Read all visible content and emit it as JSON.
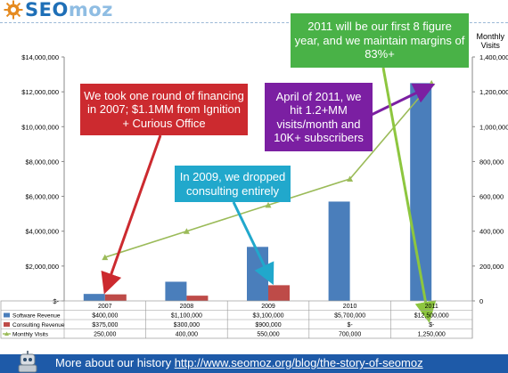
{
  "logo": {
    "part1": "SEO",
    "part2": "moz",
    "icon": "sun-gear-icon"
  },
  "right_axis_title_line1": "Monthly",
  "right_axis_title_line2": "Visits",
  "callouts": {
    "red": "We took one round of financing in 2007; $1.1MM from Ignition + Curious Office",
    "purple": "April of 2011, we hit 1.2+MM visits/month and 10K+ subscribers",
    "teal": "In 2009, we dropped consulting entirely",
    "green": "2011 will be our first 8 figure year, and we maintain margins of 83%+"
  },
  "footer": {
    "text": "More about our history",
    "link": "http://www.seomoz.org/blog/the-story-of-seomoz",
    "icon": "robot-icon"
  },
  "chart_data": {
    "type": "bar",
    "categories": [
      "2007",
      "2008",
      "2009",
      "2010",
      "2011"
    ],
    "series": [
      {
        "name": "Software Revenue",
        "kind": "bar",
        "color": "#4a7ebb",
        "values": [
          400000,
          1100000,
          3100000,
          5700000,
          12500000
        ],
        "labels": [
          "$400,000",
          "$1,100,000",
          "$3,100,000",
          "$5,700,000",
          "$12,500,000"
        ]
      },
      {
        "name": "Consulting Revenue",
        "kind": "bar",
        "color": "#be4b48",
        "values": [
          375000,
          300000,
          900000,
          0,
          0
        ],
        "labels": [
          "$375,000",
          "$300,000",
          "$900,000",
          "$-",
          "$-"
        ]
      },
      {
        "name": "Monthly Visits",
        "kind": "line",
        "axis": "right",
        "color": "#9bbb59",
        "values": [
          250000,
          400000,
          550000,
          700000,
          1250000
        ],
        "labels": [
          "250,000",
          "400,000",
          "550,000",
          "700,000",
          "1,250,000"
        ]
      }
    ],
    "y_left": {
      "min": 0,
      "max": 14000000,
      "ticks": [
        "$-",
        "$2,000,000",
        "$4,000,000",
        "$6,000,000",
        "$8,000,000",
        "$10,000,000",
        "$12,000,000",
        "$14,000,000"
      ]
    },
    "y_right": {
      "min": 0,
      "max": 1400000,
      "ticks": [
        "0",
        "200,000",
        "400,000",
        "600,000",
        "800,000",
        "1,000,000",
        "1,200,000",
        "1,400,000"
      ]
    },
    "grid": false,
    "legend": "data-table"
  }
}
